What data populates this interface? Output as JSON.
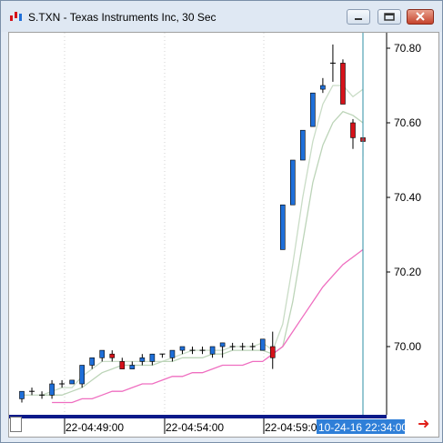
{
  "window": {
    "title": "S.TXN - Texas Instruments Inc, 30 Sec",
    "icon": "chart-app-icon",
    "buttons": [
      "minimize-icon",
      "restore-icon",
      "close-icon"
    ]
  },
  "colors": {
    "up_candle": "#1e6fd9",
    "down_candle": "#d6121a",
    "ma_fast": "#c9dcc6",
    "ma_mid": "#bcd4b8",
    "ma_slow": "#ef6ec0",
    "time_bar": "#0b1a8a",
    "crosshair": "#2e8fa4",
    "highlight_label_bg": "#2f7fd8",
    "nav_arrow": "#e0201a"
  },
  "time_axis": {
    "labels": [
      "22-04:49:00",
      "22-04:54:00",
      "22-04:59:00"
    ],
    "highlight_label": "10-24-16 22:34:00"
  },
  "chart_data": {
    "type": "candlestick",
    "title": "S.TXN - Texas Instruments Inc, 30 Sec",
    "y_ticks": [
      "70.80",
      "70.60",
      "70.40",
      "70.20",
      "70.00"
    ],
    "ylim": [
      69.83,
      70.9
    ],
    "x_labels": [
      "22-04:49:00",
      "22-04:54:00",
      "22-04:59:00"
    ],
    "candles": [
      {
        "o": 69.86,
        "h": 69.88,
        "l": 69.85,
        "c": 69.88
      },
      {
        "o": 69.88,
        "h": 69.89,
        "l": 69.87,
        "c": 69.88
      },
      {
        "o": 69.87,
        "h": 69.88,
        "l": 69.86,
        "c": 69.87
      },
      {
        "o": 69.87,
        "h": 69.91,
        "l": 69.86,
        "c": 69.9
      },
      {
        "o": 69.9,
        "h": 69.91,
        "l": 69.89,
        "c": 69.9
      },
      {
        "o": 69.9,
        "h": 69.91,
        "l": 69.9,
        "c": 69.91
      },
      {
        "o": 69.9,
        "h": 69.95,
        "l": 69.89,
        "c": 69.95
      },
      {
        "o": 69.95,
        "h": 69.97,
        "l": 69.94,
        "c": 69.97
      },
      {
        "o": 69.97,
        "h": 69.99,
        "l": 69.96,
        "c": 69.99
      },
      {
        "o": 69.98,
        "h": 69.99,
        "l": 69.96,
        "c": 69.97
      },
      {
        "o": 69.96,
        "h": 69.97,
        "l": 69.94,
        "c": 69.94
      },
      {
        "o": 69.94,
        "h": 69.96,
        "l": 69.94,
        "c": 69.95
      },
      {
        "o": 69.96,
        "h": 69.98,
        "l": 69.95,
        "c": 69.97
      },
      {
        "o": 69.96,
        "h": 69.98,
        "l": 69.95,
        "c": 69.98
      },
      {
        "o": 69.98,
        "h": 69.98,
        "l": 69.97,
        "c": 69.98
      },
      {
        "o": 69.97,
        "h": 69.99,
        "l": 69.96,
        "c": 69.99
      },
      {
        "o": 69.99,
        "h": 70.0,
        "l": 69.98,
        "c": 70.0
      },
      {
        "o": 69.99,
        "h": 70.0,
        "l": 69.98,
        "c": 69.99
      },
      {
        "o": 69.99,
        "h": 70.0,
        "l": 69.98,
        "c": 69.99
      },
      {
        "o": 69.98,
        "h": 70.0,
        "l": 69.97,
        "c": 70.0
      },
      {
        "o": 70.0,
        "h": 70.01,
        "l": 69.97,
        "c": 70.01
      },
      {
        "o": 70.0,
        "h": 70.01,
        "l": 69.99,
        "c": 70.0
      },
      {
        "o": 70.0,
        "h": 70.01,
        "l": 69.99,
        "c": 70.0
      },
      {
        "o": 70.0,
        "h": 70.01,
        "l": 69.99,
        "c": 70.0
      },
      {
        "o": 69.99,
        "h": 70.02,
        "l": 69.99,
        "c": 70.02
      },
      {
        "o": 70.0,
        "h": 70.04,
        "l": 69.94,
        "c": 69.97
      },
      {
        "o": 70.26,
        "h": 70.38,
        "l": 70.26,
        "c": 70.38
      },
      {
        "o": 70.38,
        "h": 70.5,
        "l": 70.38,
        "c": 70.5
      },
      {
        "o": 70.5,
        "h": 70.58,
        "l": 70.5,
        "c": 70.58
      },
      {
        "o": 70.59,
        "h": 70.68,
        "l": 70.59,
        "c": 70.68
      },
      {
        "o": 70.69,
        "h": 70.72,
        "l": 70.68,
        "c": 70.7
      },
      {
        "o": 70.76,
        "h": 70.81,
        "l": 70.71,
        "c": 70.76
      },
      {
        "o": 70.76,
        "h": 70.77,
        "l": 70.65,
        "c": 70.65
      },
      {
        "o": 70.6,
        "h": 70.61,
        "l": 70.53,
        "c": 70.56
      },
      {
        "o": 70.56,
        "h": 70.57,
        "l": 70.51,
        "c": 70.55
      }
    ],
    "series": [
      {
        "values": [
          69.87,
          69.87,
          69.87,
          69.88,
          69.89,
          69.89,
          69.92,
          69.94,
          69.96,
          69.96,
          69.96,
          69.96,
          69.96,
          69.96,
          69.96,
          69.97,
          69.98,
          69.99,
          69.99,
          69.99,
          69.99,
          70.0,
          70.0,
          70.0,
          70.01,
          69.99,
          70.06,
          70.22,
          70.4,
          70.55,
          70.65,
          70.7,
          70.7,
          70.67,
          70.69
        ]
      },
      {
        "values": [
          null,
          null,
          69.87,
          69.87,
          69.87,
          69.88,
          69.89,
          69.91,
          69.93,
          69.94,
          69.95,
          69.95,
          69.95,
          69.95,
          69.96,
          69.96,
          69.97,
          69.97,
          69.97,
          69.98,
          69.98,
          69.99,
          69.99,
          69.99,
          69.99,
          69.98,
          70.0,
          70.12,
          70.28,
          70.44,
          70.54,
          70.6,
          70.63,
          70.62,
          70.6
        ]
      },
      {
        "values": [
          null,
          null,
          null,
          69.85,
          69.85,
          69.85,
          69.86,
          69.86,
          69.87,
          69.88,
          69.88,
          69.89,
          69.9,
          69.9,
          69.91,
          69.92,
          69.92,
          69.93,
          69.93,
          69.94,
          69.95,
          69.95,
          69.95,
          69.96,
          69.96,
          69.98,
          70.0,
          70.04,
          70.08,
          70.12,
          70.16,
          70.19,
          70.22,
          70.24,
          70.26
        ]
      }
    ]
  }
}
